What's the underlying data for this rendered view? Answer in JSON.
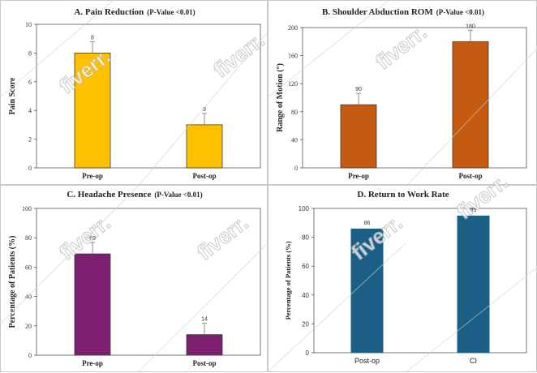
{
  "colors": {
    "p0": "#ffc000",
    "p1": "#c55a11",
    "p2": "#7b1f6e",
    "p3": "#1b5f86",
    "errorbar": "#8c8c8c"
  },
  "watermark": "fiverr.",
  "chart_data": [
    {
      "type": "bar",
      "title": "A. Pain Reduction",
      "subtitle": "(P-Value <0.01)",
      "xlabel": "",
      "ylabel": "Pain Score",
      "categories": [
        "Pre-op",
        "Post-op"
      ],
      "values": [
        8,
        3
      ],
      "value_labels": [
        "8",
        "3"
      ],
      "ylim": [
        0,
        10
      ],
      "yticks": [
        "0",
        "2",
        "4",
        "6",
        "8",
        "10"
      ],
      "grid": false,
      "error_bars": true
    },
    {
      "type": "bar",
      "title": "B. Shoulder Abduction ROM",
      "subtitle": "(P-Value <0.01)",
      "xlabel": "",
      "ylabel": "Range of Motion (°)",
      "categories": [
        "Pre-op",
        "Post-op"
      ],
      "values": [
        90,
        180
      ],
      "value_labels": [
        "90",
        "180"
      ],
      "ylim": [
        0,
        200
      ],
      "yticks": [
        "0",
        "40",
        "80",
        "120",
        "160",
        "200"
      ],
      "grid": false,
      "error_bars": true
    },
    {
      "type": "bar",
      "title": "C. Headache Presence",
      "subtitle": "(P-Value <0.01)",
      "xlabel": "",
      "ylabel": "Percentage of Patients (%)",
      "categories": [
        "Pre-op",
        "Post-op"
      ],
      "values": [
        69,
        14
      ],
      "value_labels": [
        "69",
        "14"
      ],
      "ylim": [
        0,
        100
      ],
      "yticks": [
        "0",
        "20",
        "40",
        "60",
        "80",
        "100"
      ],
      "grid": false,
      "error_bars": true
    },
    {
      "type": "bar",
      "title": "D. Return to Work Rate",
      "subtitle": "",
      "xlabel": "",
      "ylabel": "Percentage of Patients (%)",
      "categories": [
        "Post-op",
        "CI"
      ],
      "values": [
        86,
        95
      ],
      "value_labels": [
        "86",
        "95"
      ],
      "ylim": [
        0,
        100
      ],
      "yticks": [
        "0",
        "20",
        "40",
        "60",
        "80",
        "100"
      ],
      "grid": false,
      "error_bars": false
    }
  ]
}
